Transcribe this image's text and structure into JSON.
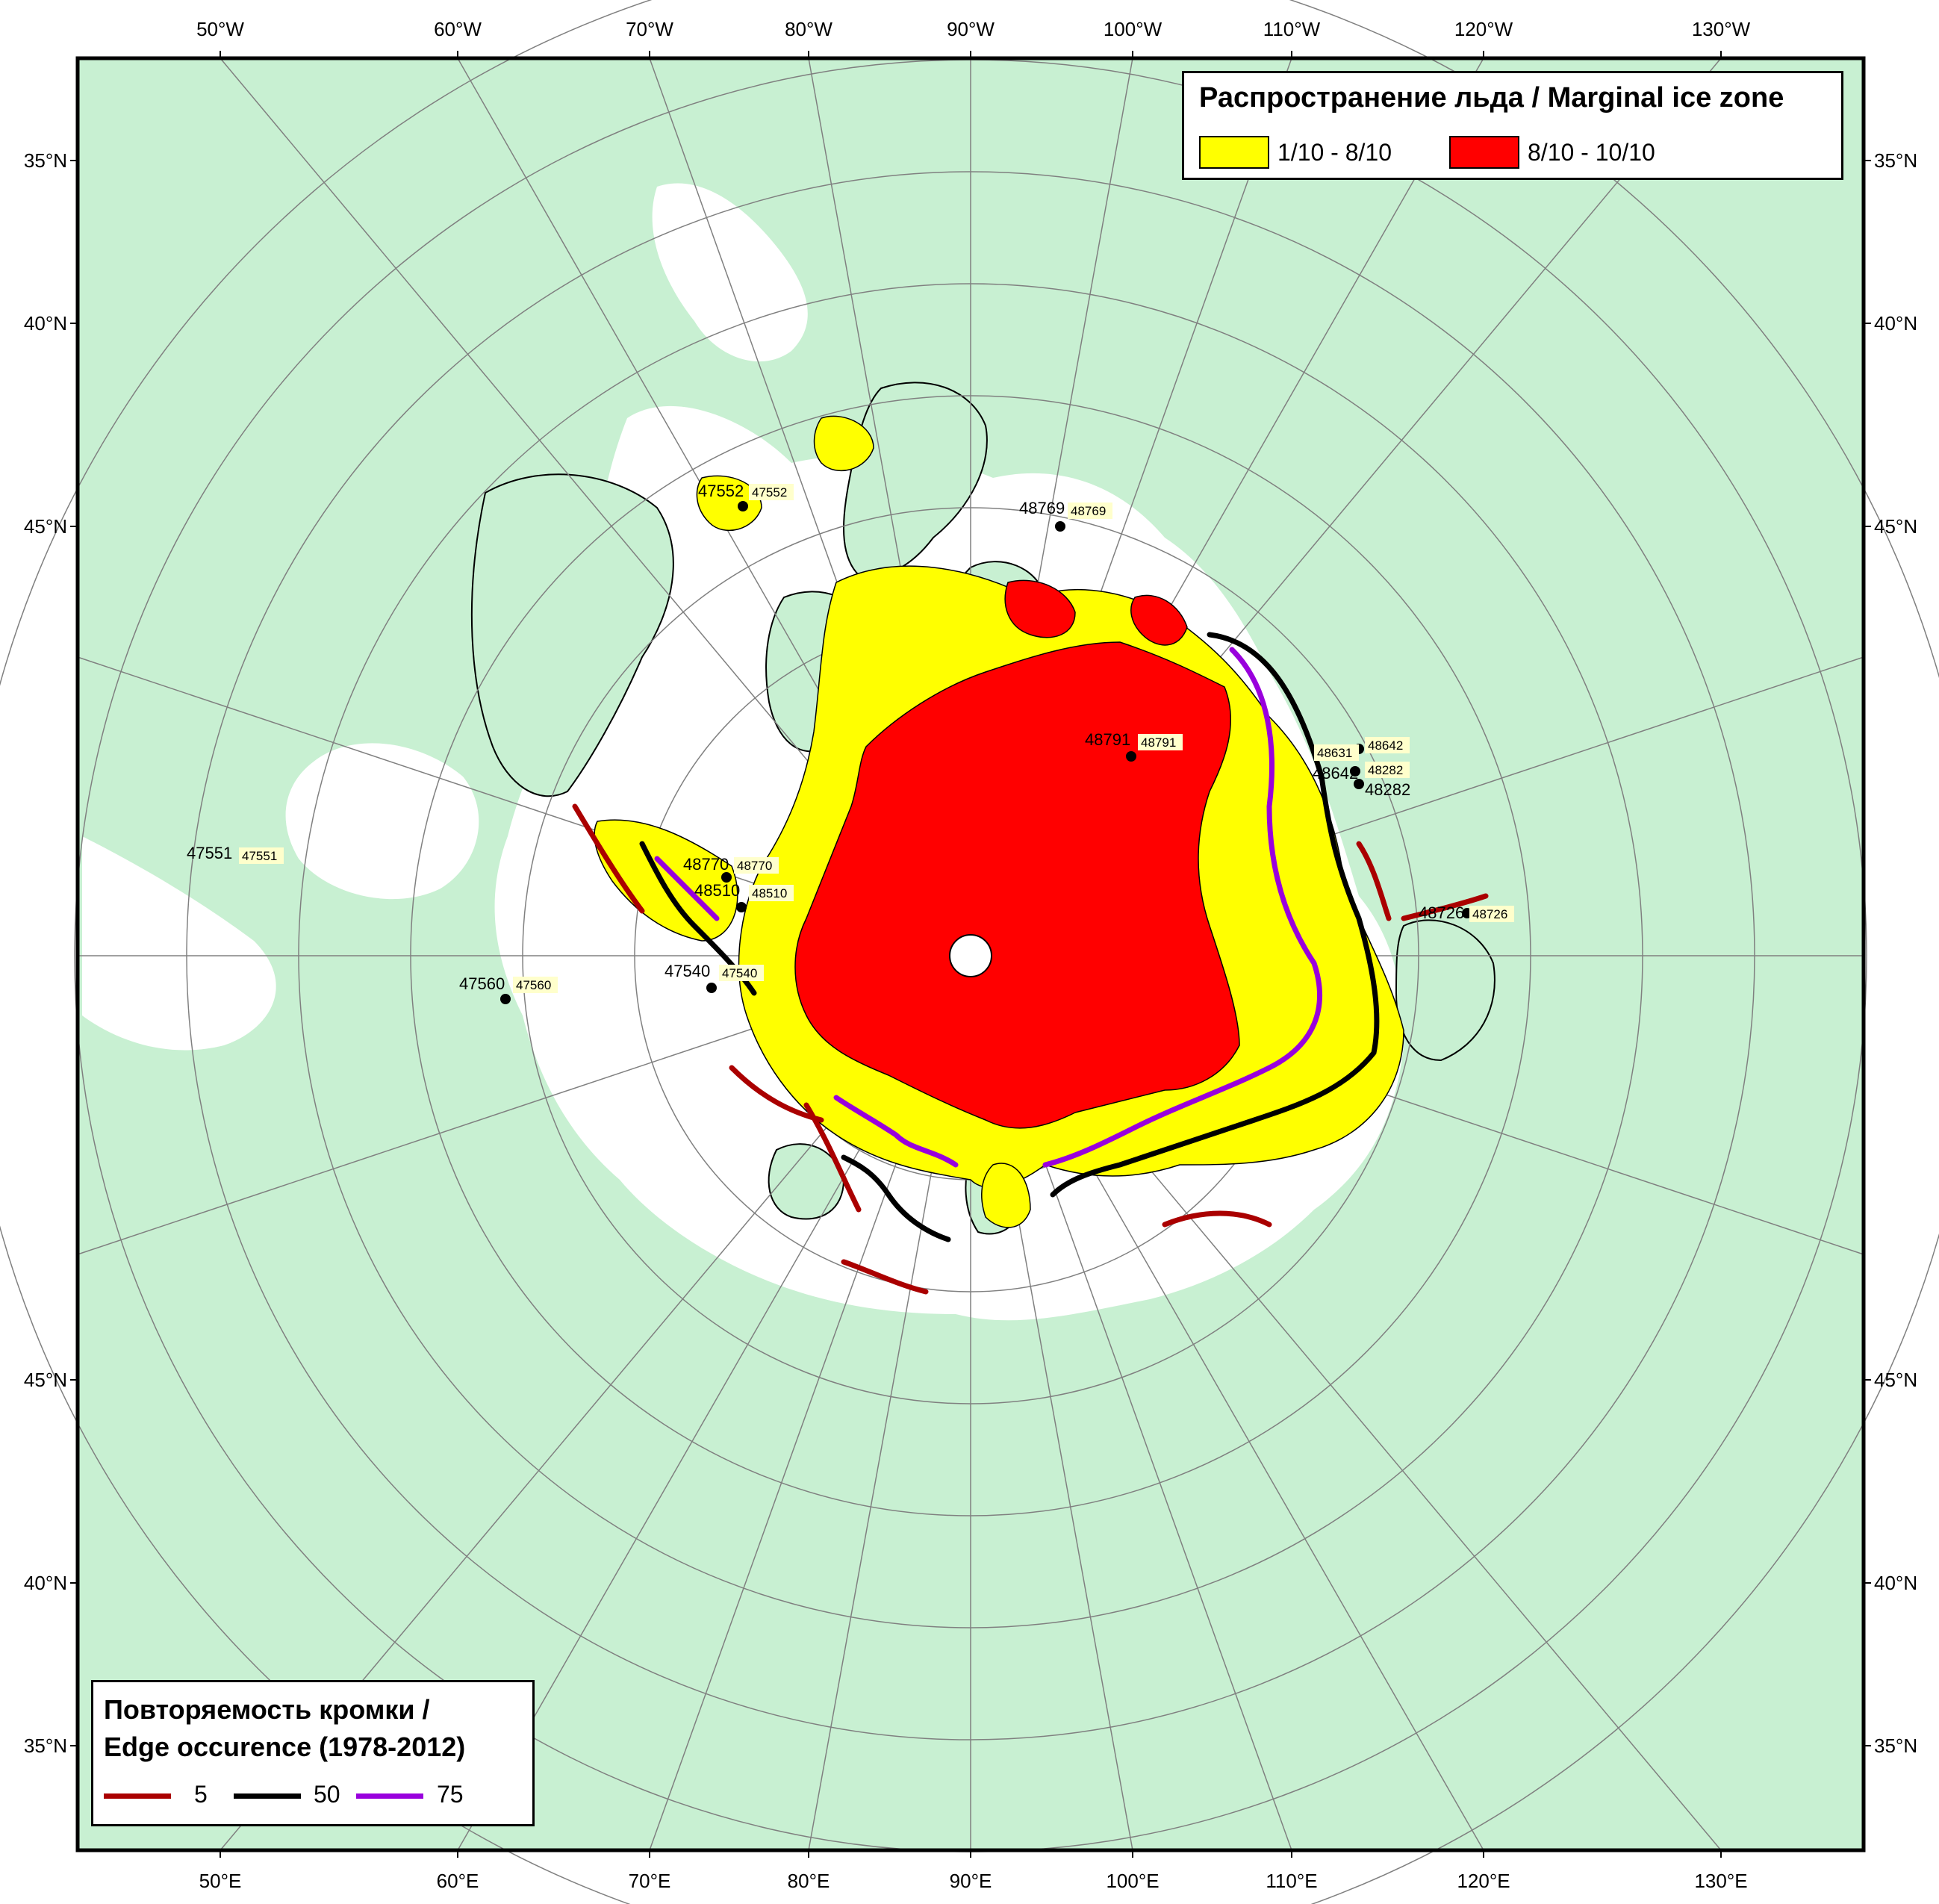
{
  "map": {
    "colors": {
      "land": "#c8f0d2",
      "ocean": "#ffffff",
      "ice_low": "#ffff00",
      "ice_high": "#ff0000",
      "edge_5": "#aa0000",
      "edge_50": "#000000",
      "edge_75": "#9900dd",
      "graticule": "#7f7f7f"
    },
    "top_longitudes": [
      "50°W",
      "60°W",
      "70°W",
      "80°W",
      "90°W",
      "100°W",
      "110°W",
      "120°W",
      "130°W"
    ],
    "bottom_longitudes": [
      "50°E",
      "60°E",
      "70°E",
      "80°E",
      "90°E",
      "100°E",
      "110°E",
      "120°E",
      "130°E"
    ],
    "left_latitudes": [
      "35°N",
      "40°N",
      "45°N",
      "45°N",
      "40°N",
      "35°N"
    ],
    "right_latitudes": [
      "35°N",
      "40°N",
      "45°N",
      "45°N",
      "40°N",
      "35°N"
    ],
    "stations": [
      {
        "id": "47551",
        "label": "47551"
      },
      {
        "id": "47552",
        "label": "47552"
      },
      {
        "id": "47560",
        "label": "47560"
      },
      {
        "id": "47540",
        "label": "47540"
      },
      {
        "id": "48769",
        "label": "48769"
      },
      {
        "id": "48791",
        "label": "48791"
      },
      {
        "id": "48770",
        "label": "48770"
      },
      {
        "id": "48510",
        "label": "48510"
      },
      {
        "id": "48642",
        "label": "48642"
      },
      {
        "id": "48631",
        "label": "48631"
      },
      {
        "id": "48282",
        "label": "48282"
      },
      {
        "id": "48726",
        "label": "48726"
      }
    ]
  },
  "ice_legend": {
    "title": "Распространение льда / Marginal ice zone",
    "items": [
      {
        "label": "1/10 - 8/10",
        "color": "#ffff00"
      },
      {
        "label": "8/10 - 10/10",
        "color": "#ff0000"
      }
    ]
  },
  "edge_legend": {
    "title_line1": "Повторяемость кромки /",
    "title_line2": "Edge occurence (1978-2012)",
    "items": [
      {
        "label": "5",
        "color": "#aa0000"
      },
      {
        "label": "50",
        "color": "#000000"
      },
      {
        "label": "75",
        "color": "#9900dd"
      }
    ]
  }
}
